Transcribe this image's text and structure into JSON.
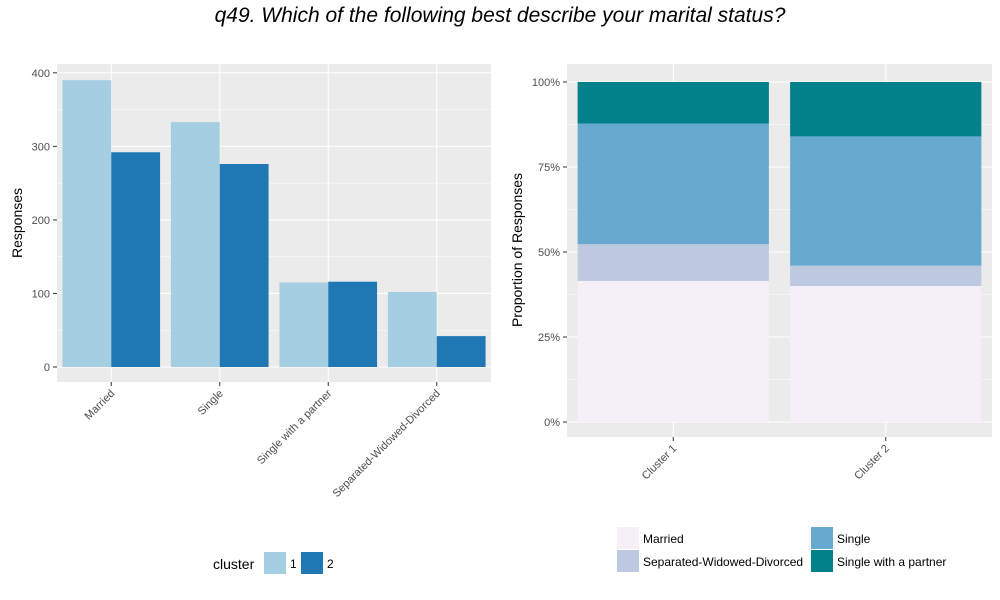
{
  "title": "q49. Which of the following best describe your marital status?",
  "chart_data": [
    {
      "type": "bar",
      "position": "dodge",
      "categories": [
        "Married",
        "Single",
        "Single with a partner",
        "Separated-Widowed-Divorced"
      ],
      "series": [
        {
          "name": "1",
          "values": [
            390,
            333,
            115,
            102
          ]
        },
        {
          "name": "2",
          "values": [
            292,
            276,
            116,
            42
          ]
        }
      ],
      "ylabel": "Responses",
      "ylim": [
        0,
        400
      ],
      "yticks": [
        0,
        100,
        200,
        300,
        400
      ],
      "grid": true,
      "legend": {
        "title": "cluster",
        "placement": "bottom"
      }
    },
    {
      "type": "bar",
      "position": "fill",
      "categories": [
        "Cluster 1",
        "Cluster 2"
      ],
      "series": [
        {
          "name": "Married",
          "values": [
            0.415,
            0.4
          ]
        },
        {
          "name": "Separated-Widowed-Divorced",
          "values": [
            0.108,
            0.06
          ]
        },
        {
          "name": "Single",
          "values": [
            0.355,
            0.38
          ]
        },
        {
          "name": "Single with a partner",
          "values": [
            0.122,
            0.16
          ]
        }
      ],
      "ylabel": "Proportion of Responses",
      "ylim": [
        0,
        1
      ],
      "yticks": [
        "0%",
        "25%",
        "50%",
        "75%",
        "100%"
      ],
      "grid": true,
      "legend": {
        "placement": "bottom",
        "order": [
          "Married",
          "Single",
          "Separated-Widowed-Divorced",
          "Single with a partner"
        ]
      }
    }
  ],
  "colors": {
    "cluster_1": "#a6cee3",
    "cluster_2": "#1f78b4",
    "married": "#f5eff7",
    "separated": "#bdc9e1",
    "single": "#67a9cf",
    "single_partner": "#02818a",
    "panel": "#ebebeb",
    "grid": "#ffffff"
  }
}
